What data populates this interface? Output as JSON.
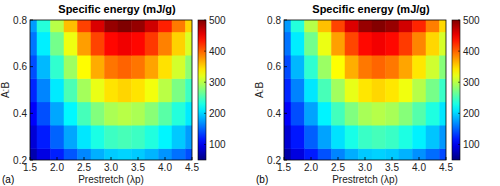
{
  "chart_data": [
    {
      "type": "heatmap",
      "title": "Specific energy (mJ/g)",
      "x_label": "Prestretch (λp)",
      "y_label": "A:B",
      "panel_label": "(a)",
      "x": [
        1.5,
        1.75,
        2.0,
        2.25,
        2.5,
        2.75,
        3.0,
        3.25,
        3.5,
        3.75,
        4.0,
        4.25,
        4.5
      ],
      "y": [
        0.2,
        0.3,
        0.4,
        0.5,
        0.6,
        0.7,
        0.8
      ],
      "cells": [
        [
          70,
          94,
          120,
          144,
          166,
          184,
          196,
          200,
          196,
          186,
          172,
          156,
          140
        ],
        [
          88,
          118,
          150,
          180,
          208,
          230,
          245,
          250,
          245,
          233,
          215,
          195,
          175
        ],
        [
          105,
          141,
          180,
          216,
          249,
          276,
          294,
          300,
          294,
          279,
          258,
          234,
          210
        ],
        [
          123,
          165,
          210,
          252,
          291,
          322,
          343,
          350,
          343,
          326,
          301,
          273,
          245
        ],
        [
          140,
          188,
          240,
          288,
          332,
          368,
          392,
          400,
          392,
          372,
          344,
          312,
          280
        ],
        [
          158,
          212,
          270,
          324,
          374,
          414,
          441,
          450,
          441,
          419,
          387,
          351,
          315
        ],
        [
          175,
          235,
          300,
          360,
          415,
          460,
          490,
          500,
          490,
          465,
          430,
          390,
          350
        ]
      ],
      "xlim": [
        1.5,
        4.5
      ],
      "ylim": [
        0.2,
        0.8
      ],
      "xticks": [
        1.5,
        {
          "value": 2,
          "label": "2.0"
        },
        2.5,
        {
          "value": 3,
          "label": "3.0"
        },
        3.5,
        {
          "value": 4,
          "label": "4.0"
        },
        4.5
      ],
      "yticks": [
        0.2,
        0.4,
        0.6,
        0.8
      ],
      "colorbar_range": [
        50,
        500
      ],
      "colorbar_ticks": [
        100,
        200,
        300,
        400,
        500
      ]
    },
    {
      "type": "heatmap",
      "title": "Specific energy (mJ/g)",
      "x_label": "Prestretch (λp)",
      "y_label": "A:B",
      "panel_label": "(b)",
      "x": [
        1.5,
        1.75,
        2.0,
        2.25,
        2.5,
        2.75,
        3.0,
        3.25,
        3.5,
        3.75,
        4.0,
        4.25,
        4.5
      ],
      "y": [
        0.2,
        0.3,
        0.4,
        0.5,
        0.6,
        0.7,
        0.8
      ],
      "cells": [
        [
          68,
          92,
          118,
          142,
          165,
          183,
          195,
          199,
          195,
          185,
          170,
          154,
          138
        ],
        [
          86,
          116,
          148,
          178,
          206,
          229,
          244,
          249,
          244,
          231,
          213,
          193,
          173
        ],
        [
          104,
          140,
          178,
          214,
          248,
          275,
          293,
          299,
          293,
          278,
          256,
          232,
          208
        ],
        [
          122,
          164,
          208,
          250,
          290,
          321,
          342,
          349,
          342,
          325,
          299,
          271,
          243
        ],
        [
          139,
          187,
          239,
          287,
          331,
          367,
          391,
          399,
          391,
          371,
          342,
          310,
          278
        ],
        [
          157,
          211,
          269,
          323,
          373,
          413,
          440,
          449,
          440,
          418,
          385,
          349,
          313
        ],
        [
          174,
          234,
          299,
          359,
          414,
          459,
          489,
          498,
          489,
          464,
          428,
          388,
          348
        ]
      ],
      "xlim": [
        1.5,
        4.5
      ],
      "ylim": [
        0.2,
        0.8
      ],
      "xticks": [
        1.5,
        {
          "value": 2,
          "label": "2.0"
        },
        2.5,
        {
          "value": 3,
          "label": "3.0"
        },
        3.5,
        {
          "value": 4,
          "label": "4.0"
        },
        4.5
      ],
      "yticks": [
        0.2,
        0.4,
        0.6,
        0.8
      ],
      "colorbar_range": [
        50,
        500
      ],
      "colorbar_ticks": [
        100,
        200,
        300,
        400,
        500
      ]
    }
  ]
}
